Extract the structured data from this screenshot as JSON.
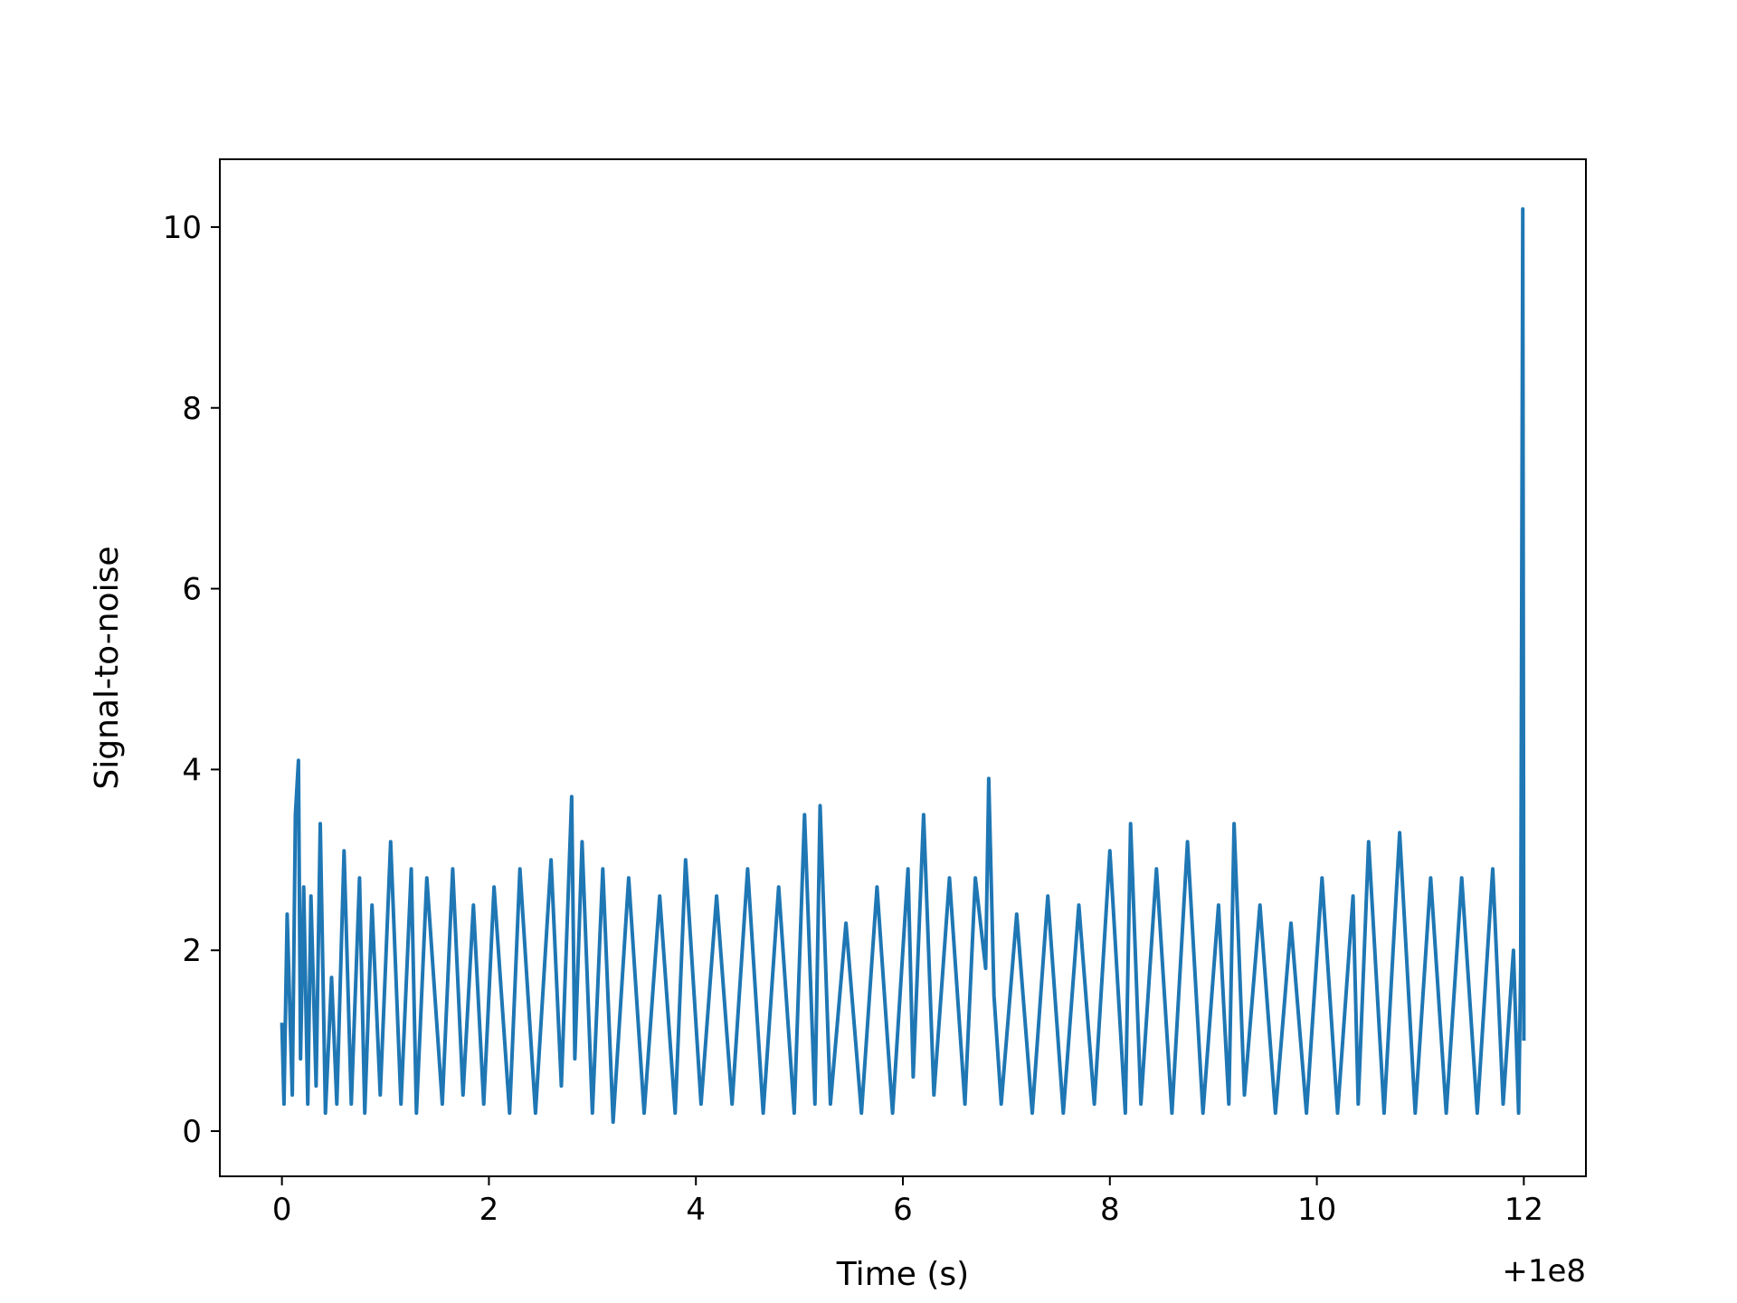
{
  "chart_data": {
    "type": "line",
    "title": "",
    "xlabel": "Time (s)",
    "ylabel": "Signal-to-noise",
    "x_offset_label": "+1e8",
    "xlim": [
      -0.6,
      12.6
    ],
    "ylim": [
      -0.5,
      10.75
    ],
    "xticks": [
      0,
      2,
      4,
      6,
      8,
      10,
      12
    ],
    "xtick_labels": [
      "0",
      "2",
      "4",
      "6",
      "8",
      "10",
      "12"
    ],
    "yticks": [
      0,
      2,
      4,
      6,
      8,
      10
    ],
    "ytick_labels": [
      "0",
      "2",
      "4",
      "6",
      "8",
      "10"
    ],
    "grid": false,
    "series": [
      {
        "color": "#1f77b4",
        "x": [
          0.0,
          0.02,
          0.05,
          0.1,
          0.13,
          0.16,
          0.18,
          0.21,
          0.25,
          0.28,
          0.33,
          0.37,
          0.42,
          0.48,
          0.53,
          0.6,
          0.67,
          0.75,
          0.8,
          0.87,
          0.95,
          1.05,
          1.15,
          1.25,
          1.3,
          1.4,
          1.55,
          1.65,
          1.75,
          1.85,
          1.95,
          2.05,
          2.2,
          2.3,
          2.45,
          2.6,
          2.7,
          2.8,
          2.83,
          2.9,
          3.0,
          3.1,
          3.2,
          3.35,
          3.5,
          3.65,
          3.8,
          3.9,
          4.05,
          4.2,
          4.35,
          4.5,
          4.65,
          4.8,
          4.95,
          5.05,
          5.15,
          5.2,
          5.3,
          5.45,
          5.6,
          5.75,
          5.9,
          6.05,
          6.1,
          6.2,
          6.3,
          6.45,
          6.6,
          6.7,
          6.8,
          6.83,
          6.88,
          6.95,
          7.1,
          7.25,
          7.4,
          7.55,
          7.7,
          7.85,
          8.0,
          8.15,
          8.2,
          8.3,
          8.45,
          8.6,
          8.75,
          8.9,
          9.05,
          9.15,
          9.2,
          9.3,
          9.45,
          9.6,
          9.75,
          9.9,
          10.05,
          10.2,
          10.35,
          10.4,
          10.5,
          10.65,
          10.8,
          10.95,
          11.1,
          11.25,
          11.4,
          11.55,
          11.7,
          11.8,
          11.9,
          11.95,
          11.97,
          11.99,
          12.0
        ],
        "y": [
          1.2,
          0.3,
          2.4,
          0.4,
          3.5,
          4.1,
          0.8,
          2.7,
          0.3,
          2.6,
          0.5,
          3.4,
          0.2,
          1.7,
          0.3,
          3.1,
          0.3,
          2.8,
          0.2,
          2.5,
          0.4,
          3.2,
          0.3,
          2.9,
          0.2,
          2.8,
          0.3,
          2.9,
          0.4,
          2.5,
          0.3,
          2.7,
          0.2,
          2.9,
          0.2,
          3.0,
          0.5,
          3.7,
          0.8,
          3.2,
          0.2,
          2.9,
          0.1,
          2.8,
          0.2,
          2.6,
          0.2,
          3.0,
          0.3,
          2.6,
          0.3,
          2.9,
          0.2,
          2.7,
          0.2,
          3.5,
          0.3,
          3.6,
          0.3,
          2.3,
          0.2,
          2.7,
          0.2,
          2.9,
          0.6,
          3.5,
          0.4,
          2.8,
          0.3,
          2.8,
          1.8,
          3.9,
          1.5,
          0.3,
          2.4,
          0.2,
          2.6,
          0.2,
          2.5,
          0.3,
          3.1,
          0.2,
          3.4,
          0.3,
          2.9,
          0.2,
          3.2,
          0.2,
          2.5,
          0.3,
          3.4,
          0.4,
          2.5,
          0.2,
          2.3,
          0.2,
          2.8,
          0.2,
          2.6,
          0.3,
          3.2,
          0.2,
          3.3,
          0.2,
          2.8,
          0.2,
          2.8,
          0.2,
          2.9,
          0.3,
          2.0,
          0.2,
          1.8,
          10.2,
          1.0
        ]
      }
    ]
  }
}
